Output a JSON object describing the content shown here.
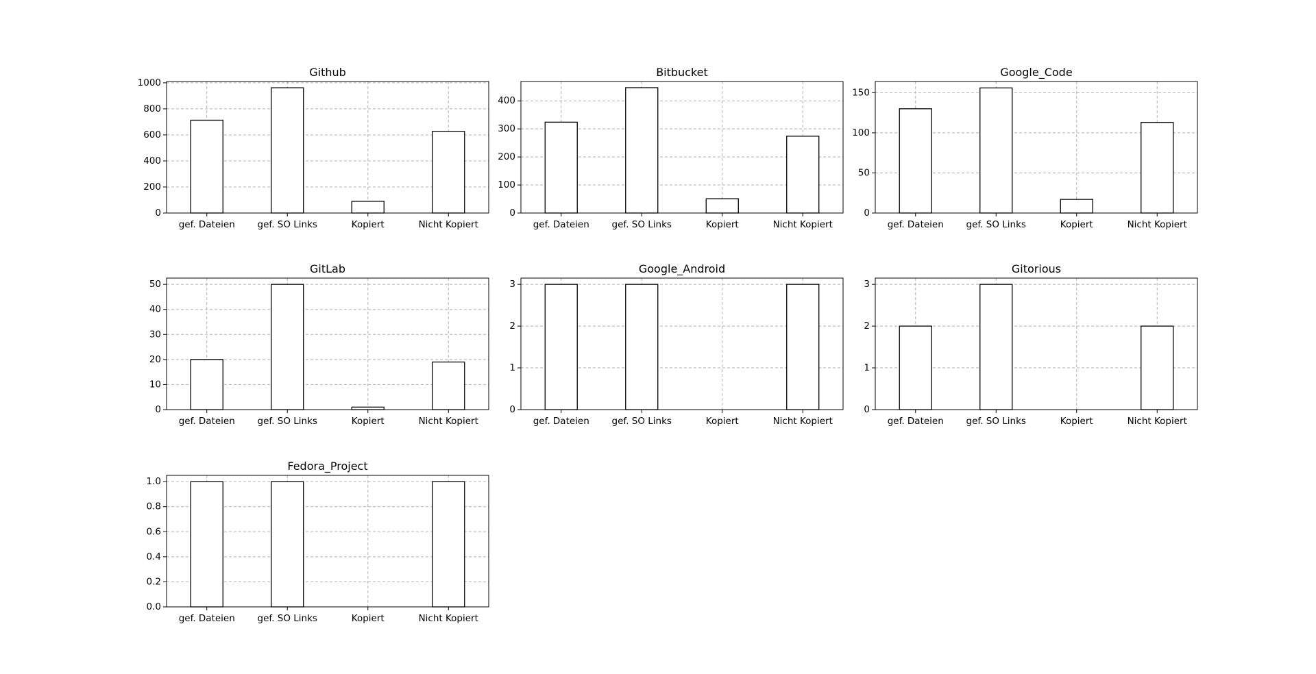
{
  "chart_data": [
    {
      "type": "bar",
      "title": "Github",
      "categories": [
        "gef. Dateien",
        "gef. SO Links",
        "Kopiert",
        "Nicht Kopiert"
      ],
      "values": [
        713,
        962,
        90,
        627
      ],
      "ylim": [
        0,
        1010
      ],
      "yticks": [
        0,
        200,
        400,
        600,
        800,
        1000
      ],
      "ytick_labels": [
        "0",
        "200",
        "400",
        "600",
        "800",
        "1000"
      ],
      "grid": true
    },
    {
      "type": "bar",
      "title": "Bitbucket",
      "categories": [
        "gef. Dateien",
        "gef. SO Links",
        "Kopiert",
        "Nicht Kopiert"
      ],
      "values": [
        324,
        447,
        51,
        274
      ],
      "ylim": [
        0,
        469
      ],
      "yticks": [
        0,
        100,
        200,
        300,
        400
      ],
      "ytick_labels": [
        "0",
        "100",
        "200",
        "300",
        "400"
      ],
      "grid": true
    },
    {
      "type": "bar",
      "title": "Google_Code",
      "categories": [
        "gef. Dateien",
        "gef. SO Links",
        "Kopiert",
        "Nicht Kopiert"
      ],
      "values": [
        130,
        156,
        17,
        113
      ],
      "ylim": [
        0,
        164
      ],
      "yticks": [
        0,
        50,
        100,
        150
      ],
      "ytick_labels": [
        "0",
        "50",
        "100",
        "150"
      ],
      "grid": true
    },
    {
      "type": "bar",
      "title": "GitLab",
      "categories": [
        "gef. Dateien",
        "gef. SO Links",
        "Kopiert",
        "Nicht Kopiert"
      ],
      "values": [
        20,
        50,
        1,
        19
      ],
      "ylim": [
        0,
        52.5
      ],
      "yticks": [
        0,
        10,
        20,
        30,
        40,
        50
      ],
      "ytick_labels": [
        "0",
        "10",
        "20",
        "30",
        "40",
        "50"
      ],
      "grid": true
    },
    {
      "type": "bar",
      "title": "Google_Android",
      "categories": [
        "gef. Dateien",
        "gef. SO Links",
        "Kopiert",
        "Nicht Kopiert"
      ],
      "values": [
        3,
        3,
        0,
        3
      ],
      "ylim": [
        0,
        3.15
      ],
      "yticks": [
        0,
        1,
        2,
        3
      ],
      "ytick_labels": [
        "0",
        "1",
        "2",
        "3"
      ],
      "grid": true
    },
    {
      "type": "bar",
      "title": "Gitorious",
      "categories": [
        "gef. Dateien",
        "gef. SO Links",
        "Kopiert",
        "Nicht Kopiert"
      ],
      "values": [
        2,
        3,
        0,
        2
      ],
      "ylim": [
        0,
        3.15
      ],
      "yticks": [
        0,
        1,
        2,
        3
      ],
      "ytick_labels": [
        "0",
        "1",
        "2",
        "3"
      ],
      "grid": true
    },
    {
      "type": "bar",
      "title": "Fedora_Project",
      "categories": [
        "gef. Dateien",
        "gef. SO Links",
        "Kopiert",
        "Nicht Kopiert"
      ],
      "values": [
        1,
        1,
        0,
        1
      ],
      "ylim": [
        0,
        1.05
      ],
      "yticks": [
        0,
        0.2,
        0.4,
        0.6,
        0.8,
        1.0
      ],
      "ytick_labels": [
        "0.0",
        "0.2",
        "0.4",
        "0.6",
        "0.8",
        "1.0"
      ],
      "grid": true
    }
  ]
}
